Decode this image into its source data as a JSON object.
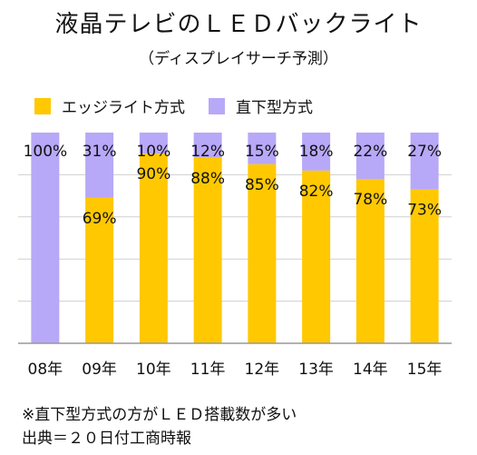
{
  "title": "液晶テレビのＬＥＤバックライト",
  "subtitle": "（ディスプレイサーチ予測）",
  "footnotes": [
    "※直下型方式の方がＬＥＤ搭載数が多い",
    "出典＝２０日付工商時報"
  ],
  "chart_data": {
    "type": "bar",
    "stacked": true,
    "categories": [
      "08年",
      "09年",
      "10年",
      "11年",
      "12年",
      "13年",
      "14年",
      "15年"
    ],
    "series": [
      {
        "name": "エッジライト方式",
        "color": "#FFC800",
        "values": [
          0,
          69,
          90,
          88,
          85,
          82,
          78,
          73
        ],
        "labels": [
          "",
          "69%",
          "90%",
          "88%",
          "85%",
          "82%",
          "78%",
          "73%"
        ]
      },
      {
        "name": "直下型方式",
        "color": "#B8A8F8",
        "values": [
          100,
          31,
          10,
          12,
          15,
          18,
          22,
          27
        ],
        "labels": [
          "100%",
          "31%",
          "10%",
          "12%",
          "15%",
          "18%",
          "22%",
          "27%"
        ]
      }
    ],
    "ylim": [
      0,
      100
    ],
    "grid": true,
    "legend": "top-left"
  }
}
